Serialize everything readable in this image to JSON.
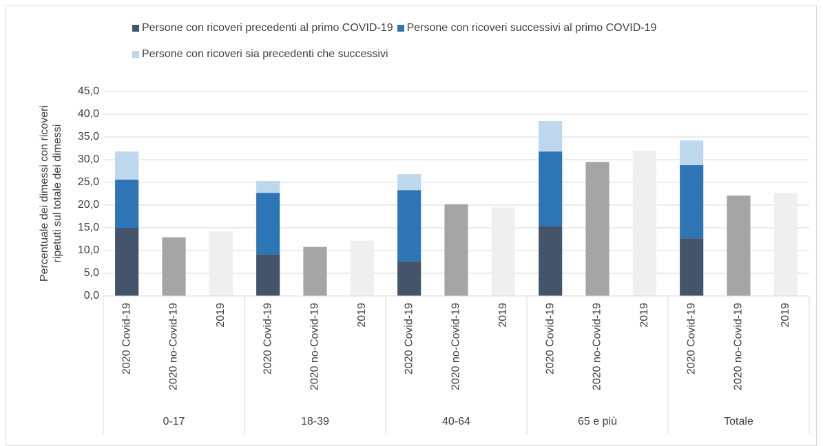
{
  "chart_data": {
    "type": "stacked-bar",
    "y_label": "Percentuale dei dimessi con ricoveri ripetuti sul totale dei dimessi",
    "groups": [
      "0-17",
      "18-39",
      "40-64",
      "65 e più",
      "Totale"
    ],
    "categories": [
      "2020 Covid-19",
      "2020 no-Covid-19",
      "2019",
      "2020 Covid-19",
      "2020 no-Covid-19",
      "2019",
      "2020 Covid-19",
      "2020 no-Covid-19",
      "2019",
      "2020 Covid-19",
      "2020 no-Covid-19",
      "2019",
      "2020 Covid-19",
      "2020 no-Covid-19",
      "2019"
    ],
    "series": [
      {
        "name": "Persone con ricoveri precedenti al primo COVID-19",
        "color": "#44546a",
        "values": [
          15.0,
          null,
          null,
          9.1,
          null,
          null,
          7.6,
          null,
          null,
          15.4,
          null,
          null,
          12.7,
          null,
          null
        ]
      },
      {
        "name": "Persone con ricoveri successivi al primo COVID-19",
        "color": "#2e75b6",
        "values": [
          10.6,
          null,
          null,
          13.6,
          null,
          null,
          15.7,
          null,
          null,
          16.4,
          null,
          null,
          16.1,
          null,
          null
        ]
      },
      {
        "name": "Persone con ricoveri sia precedenti che successivi",
        "color": "#bdd7ee",
        "values": [
          6.2,
          null,
          null,
          2.6,
          null,
          null,
          3.5,
          null,
          null,
          6.7,
          null,
          null,
          5.4,
          null,
          null
        ]
      },
      {
        "color": "#a5a5a5",
        "values": [
          null,
          12.9,
          null,
          null,
          10.8,
          null,
          null,
          20.2,
          null,
          null,
          29.5,
          null,
          null,
          22.1,
          null
        ]
      },
      {
        "color": "#efefef",
        "values": [
          null,
          null,
          14.2,
          null,
          null,
          12.2,
          null,
          null,
          19.5,
          null,
          null,
          32.0,
          null,
          null,
          22.7
        ]
      }
    ],
    "ylim": [
      0,
      45
    ],
    "yticks": [
      {
        "value": 0,
        "label": "0,0"
      },
      {
        "value": 5,
        "label": "5,0"
      },
      {
        "value": 10,
        "label": "10,0"
      },
      {
        "value": 15,
        "label": "15,0"
      },
      {
        "value": 20,
        "label": "20,0"
      },
      {
        "value": 25,
        "label": "25,0"
      },
      {
        "value": 30,
        "label": "30,0"
      },
      {
        "value": 35,
        "label": "35,0"
      },
      {
        "value": 40,
        "label": "40,0"
      },
      {
        "value": 45,
        "label": "45,0"
      }
    ],
    "grid": true
  }
}
